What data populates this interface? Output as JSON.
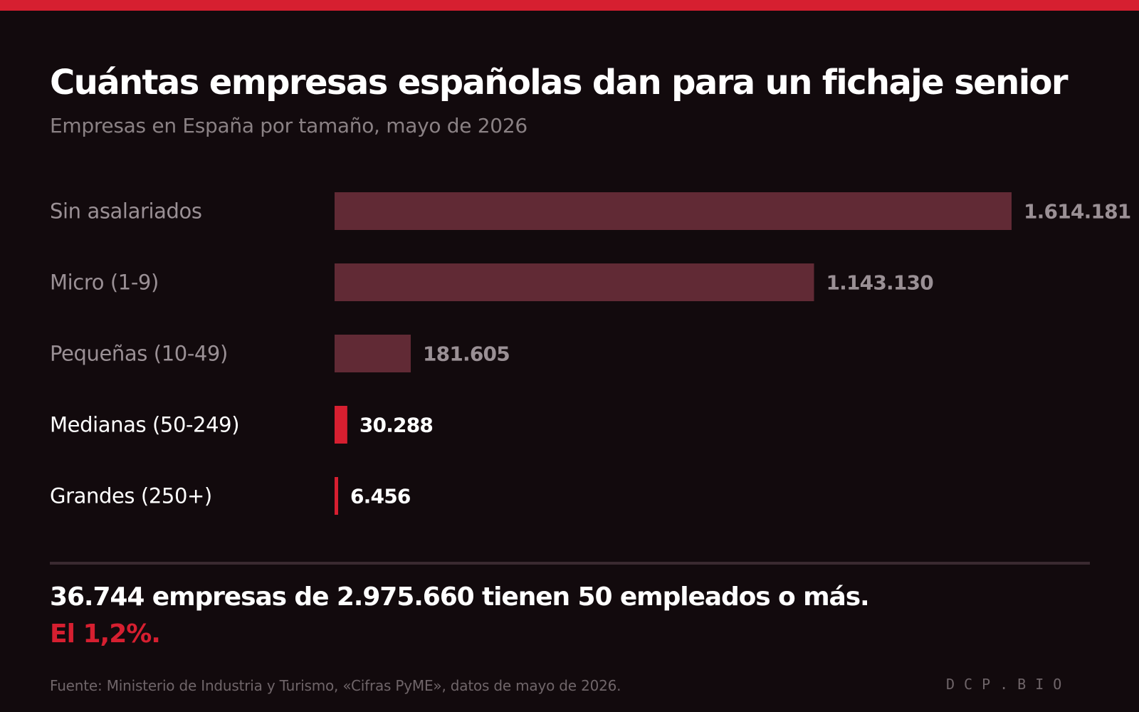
{
  "header": {
    "title": "Cuántas empresas españolas dan para un fichaje senior",
    "subtitle": "Empresas en España por tamaño, mayo de 2026"
  },
  "chart_data": {
    "type": "bar",
    "orientation": "horizontal",
    "categories": [
      "Sin asalariados",
      "Micro (1-9)",
      "Pequeñas (10-49)",
      "Medianas (50-249)",
      "Grandes (250+)"
    ],
    "values": [
      1614181,
      1143130,
      181605,
      30288,
      6456
    ],
    "value_labels": [
      "1.614.181",
      "1.143.130",
      "181.605",
      "30.288",
      "6.456"
    ],
    "highlighted": [
      false,
      false,
      false,
      true,
      true
    ],
    "xlim": [
      0,
      1614181
    ],
    "colors": {
      "bar": "#612a35",
      "highlight": "#d61f30",
      "label_muted": "#9a9095",
      "label_strong": "#ffffff"
    }
  },
  "summary": {
    "text": "36.744 empresas de 2.975.660 tienen 50 empleados o más.",
    "highlight": "El 1,2%."
  },
  "footer": {
    "source": "Fuente: Ministerio de Industria y Turismo, «Cifras PyME», datos de mayo de 2026.",
    "brand": "DCP.BIO"
  },
  "colors": {
    "background": "#120a0d",
    "accent": "#d61f30"
  }
}
